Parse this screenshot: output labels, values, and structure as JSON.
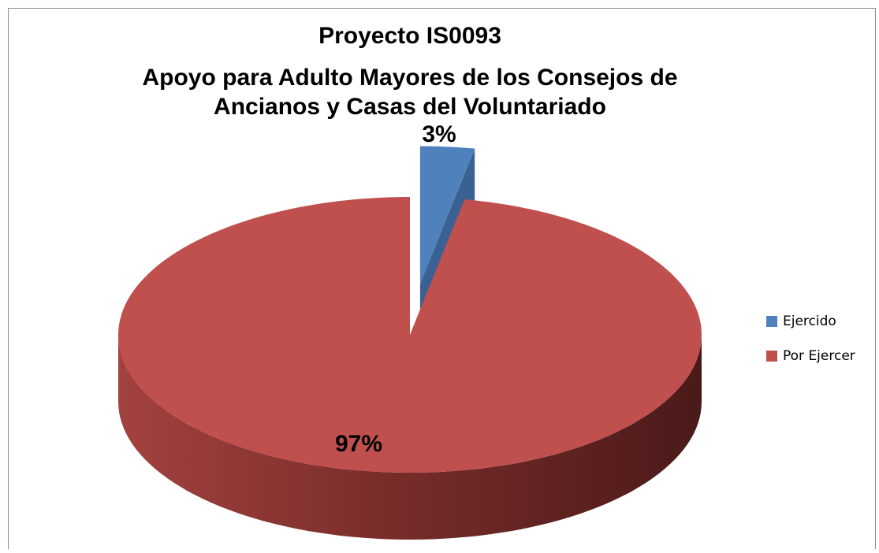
{
  "chart_data": {
    "type": "pie3d",
    "title": [
      "Proyecto IS0093",
      "Apoyo para Adulto Mayores de los Consejos de",
      "Ancianos y Casas del Voluntariado"
    ],
    "categories": [
      "Ejercido",
      "Por Ejercer"
    ],
    "values": [
      3,
      97
    ],
    "value_labels": [
      "3%",
      "97%"
    ],
    "colors": [
      "#4f81bd",
      "#c0504d"
    ],
    "legend": "right"
  }
}
